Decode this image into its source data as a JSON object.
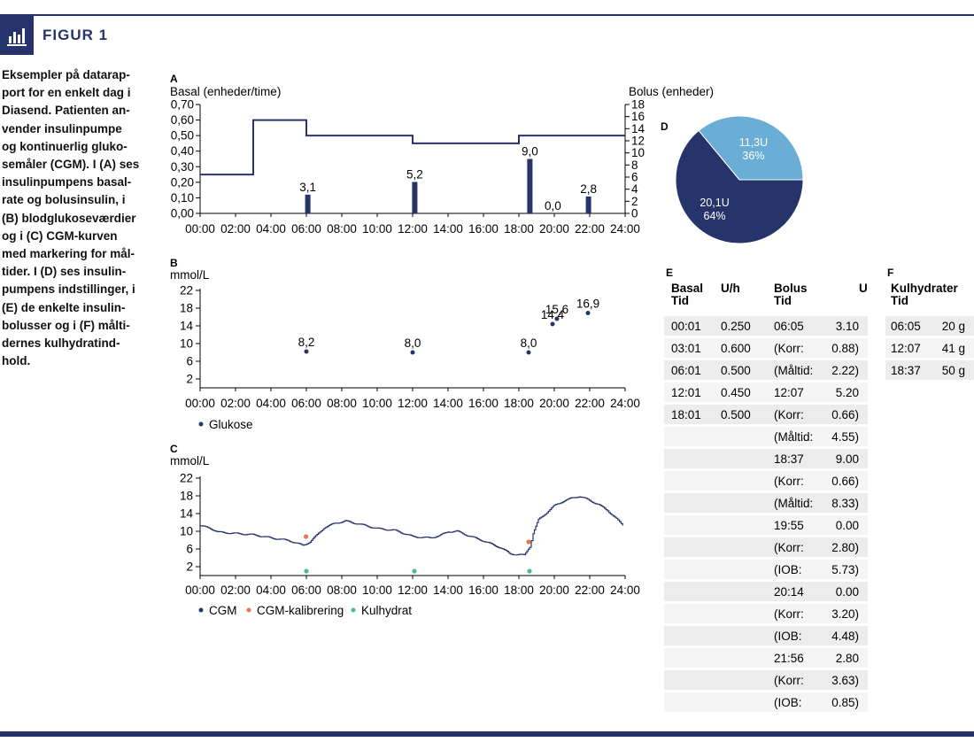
{
  "figure_label": "FIGUR 1",
  "caption": "Eksempler på datarap-\nport for en enkelt dag i\nDiasend. Patienten an-\nvender insulinpumpe\nog kontinuerlig gluko-\nsemåler (CGM). I (A) ses\ninsulinpumpens basal-\nrate og bolusinsulin, i\n(B) blodglukoseværdier\nog i (C) CGM-kurven\nmed markering for mål-\ntider. I (D) ses insulin-\npumpens indstillinger, i\n(E) de enkelte insulin-\nbolusser og i (F) målti-\ndernes kulhydratind-\nhold.",
  "colors": {
    "navy": "#27346b",
    "light_blue": "#6aaed6",
    "orange": "#e07b4a",
    "green": "#4db894",
    "row_shade": "#ececec"
  },
  "chart_data": [
    {
      "panel": "A",
      "type": "line+bar",
      "ylabel_left": "Basal (enheder/time)",
      "ylabel_right": "Bolus (enheder)",
      "xticks": [
        "00:00",
        "02:00",
        "04:00",
        "06:00",
        "08:00",
        "10:00",
        "12:00",
        "14:00",
        "16:00",
        "18:00",
        "20:00",
        "22:00",
        "24:00"
      ],
      "yticks_left": [
        "0,00",
        "0,10",
        "0,20",
        "0,30",
        "0,40",
        "0,50",
        "0,60",
        "0,70"
      ],
      "yticks_right": [
        "0",
        "2",
        "4",
        "6",
        "8",
        "10",
        "12",
        "14",
        "16",
        "18"
      ],
      "ylim_left": [
        0,
        0.7
      ],
      "ylim_right": [
        0,
        18
      ],
      "basal": [
        [
          0,
          0.25
        ],
        [
          3,
          0.6
        ],
        [
          6,
          0.5
        ],
        [
          12,
          0.45
        ],
        [
          18,
          0.5
        ],
        [
          24,
          0.5
        ]
      ],
      "bolus": [
        {
          "x": 6.08,
          "value": 3.1,
          "label": "3,1"
        },
        {
          "x": 12.12,
          "value": 5.2,
          "label": "5,2"
        },
        {
          "x": 18.62,
          "value": 9.0,
          "label": "9,0"
        },
        {
          "x": 19.92,
          "value": 0.0,
          "label": "0,0"
        },
        {
          "x": 21.93,
          "value": 2.8,
          "label": "2,8"
        }
      ]
    },
    {
      "panel": "B",
      "type": "scatter",
      "ylabel": "mmol/L",
      "xticks": [
        "00:00",
        "02:00",
        "04:00",
        "06:00",
        "08:00",
        "10:00",
        "12:00",
        "14:00",
        "16:00",
        "18:00",
        "20:00",
        "22:00",
        "24:00"
      ],
      "yticks": [
        "2",
        "6",
        "10",
        "14",
        "18",
        "22"
      ],
      "ylim": [
        0,
        24
      ],
      "points": [
        {
          "x": 6.0,
          "y": 8.2,
          "label": "8,2"
        },
        {
          "x": 12.0,
          "y": 8.0,
          "label": "8,0"
        },
        {
          "x": 18.55,
          "y": 8.0,
          "label": "8,0"
        },
        {
          "x": 19.9,
          "y": 14.4,
          "label": "14,4"
        },
        {
          "x": 20.15,
          "y": 15.6,
          "label": "15,6"
        },
        {
          "x": 21.9,
          "y": 16.9,
          "label": "16,9"
        }
      ],
      "legend": [
        {
          "name": "Glukose",
          "color": "#27346b"
        }
      ]
    },
    {
      "panel": "C",
      "type": "line",
      "ylabel": "mmol/L",
      "xticks": [
        "00:00",
        "02:00",
        "04:00",
        "06:00",
        "08:00",
        "10:00",
        "12:00",
        "14:00",
        "16:00",
        "18:00",
        "20:00",
        "22:00",
        "24:00"
      ],
      "yticks": [
        "2",
        "6",
        "10",
        "14",
        "18",
        "22"
      ],
      "ylim": [
        0,
        24
      ],
      "cgm": [
        [
          0,
          11.2
        ],
        [
          0.5,
          10.8
        ],
        [
          1,
          9.8
        ],
        [
          2,
          9.5
        ],
        [
          3,
          9.2
        ],
        [
          4,
          8.5
        ],
        [
          5,
          7.9
        ],
        [
          5.8,
          6.8
        ],
        [
          6.2,
          7.6
        ],
        [
          6.6,
          9.2
        ],
        [
          7,
          10.8
        ],
        [
          7.6,
          11.8
        ],
        [
          8.2,
          12.3
        ],
        [
          9,
          11.6
        ],
        [
          10,
          10.6
        ],
        [
          11,
          10.2
        ],
        [
          12,
          8.8
        ],
        [
          12.6,
          8.6
        ],
        [
          13,
          8.5
        ],
        [
          13.5,
          9.0
        ],
        [
          14,
          9.9
        ],
        [
          14.5,
          10.0
        ],
        [
          15,
          9.2
        ],
        [
          16,
          7.8
        ],
        [
          17,
          6.2
        ],
        [
          17.5,
          4.9
        ],
        [
          18.3,
          4.6
        ],
        [
          18.6,
          6.5
        ],
        [
          18.8,
          9.5
        ],
        [
          19.1,
          12.6
        ],
        [
          19.5,
          14.0
        ],
        [
          20,
          15.8
        ],
        [
          20.5,
          16.8
        ],
        [
          21,
          17.5
        ],
        [
          21.4,
          17.9
        ],
        [
          21.8,
          17.3
        ],
        [
          22.5,
          16.0
        ],
        [
          23,
          14.7
        ],
        [
          23.5,
          12.8
        ],
        [
          23.95,
          11.0
        ]
      ],
      "calibration": [
        {
          "x": 5.98,
          "y": 8.8
        },
        {
          "x": 18.55,
          "y": 7.6
        }
      ],
      "carbs": [
        {
          "x": 6.0,
          "y": 1
        },
        {
          "x": 12.1,
          "y": 1
        },
        {
          "x": 18.6,
          "y": 1
        }
      ],
      "legend": [
        {
          "name": "CGM",
          "color": "#27346b"
        },
        {
          "name": "CGM-kalibrering",
          "color": "#e07b4a"
        },
        {
          "name": "Kulhydrat",
          "color": "#4db894"
        }
      ]
    },
    {
      "panel": "D",
      "type": "pie",
      "slices": [
        {
          "label": "11,3U",
          "pct_label": "36%",
          "value": 36,
          "color": "#6aaed6"
        },
        {
          "label": "20,1U",
          "pct_label": "64%",
          "value": 64,
          "color": "#27346b"
        }
      ]
    },
    {
      "panel": "E",
      "type": "table",
      "headers": [
        [
          "Basal",
          "Tid"
        ],
        [
          "U/h"
        ],
        [
          "Bolus",
          "Tid"
        ],
        [
          "U"
        ]
      ],
      "rows": [
        [
          "00:01",
          "0.250",
          "06:05",
          "3.10"
        ],
        [
          "03:01",
          "0.600",
          "(Korr:",
          "0.88)"
        ],
        [
          "06:01",
          "0.500",
          "(Måltid:",
          "2.22)"
        ],
        [
          "12:01",
          "0.450",
          "12:07",
          "5.20"
        ],
        [
          "18:01",
          "0.500",
          "(Korr:",
          "0.66)"
        ],
        [
          "",
          "",
          "(Måltid:",
          "4.55)"
        ],
        [
          "",
          "",
          "18:37",
          "9.00"
        ],
        [
          "",
          "",
          "(Korr:",
          "0.66)"
        ],
        [
          "",
          "",
          "(Måltid:",
          "8.33)"
        ],
        [
          "",
          "",
          "19:55",
          "0.00"
        ],
        [
          "",
          "",
          "(Korr:",
          "2.80)"
        ],
        [
          "",
          "",
          "(IOB:",
          "5.73)"
        ],
        [
          "",
          "",
          "20:14",
          "0.00"
        ],
        [
          "",
          "",
          "(Korr:",
          "3.20)"
        ],
        [
          "",
          "",
          "(IOB:",
          "4.48)"
        ],
        [
          "",
          "",
          "21:56",
          "2.80"
        ],
        [
          "",
          "",
          "(Korr:",
          "3.63)"
        ],
        [
          "",
          "",
          "(IOB:",
          "0.85)"
        ]
      ]
    },
    {
      "panel": "F",
      "type": "table",
      "headers": [
        [
          "Kulhydrater",
          "Tid"
        ]
      ],
      "rows": [
        [
          "06:05",
          "20 g"
        ],
        [
          "12:07",
          "41 g"
        ],
        [
          "18:37",
          "50 g"
        ]
      ]
    }
  ],
  "panel_labels": {
    "A": "A",
    "B": "B",
    "C": "C",
    "D": "D",
    "E": "E",
    "F": "F"
  }
}
